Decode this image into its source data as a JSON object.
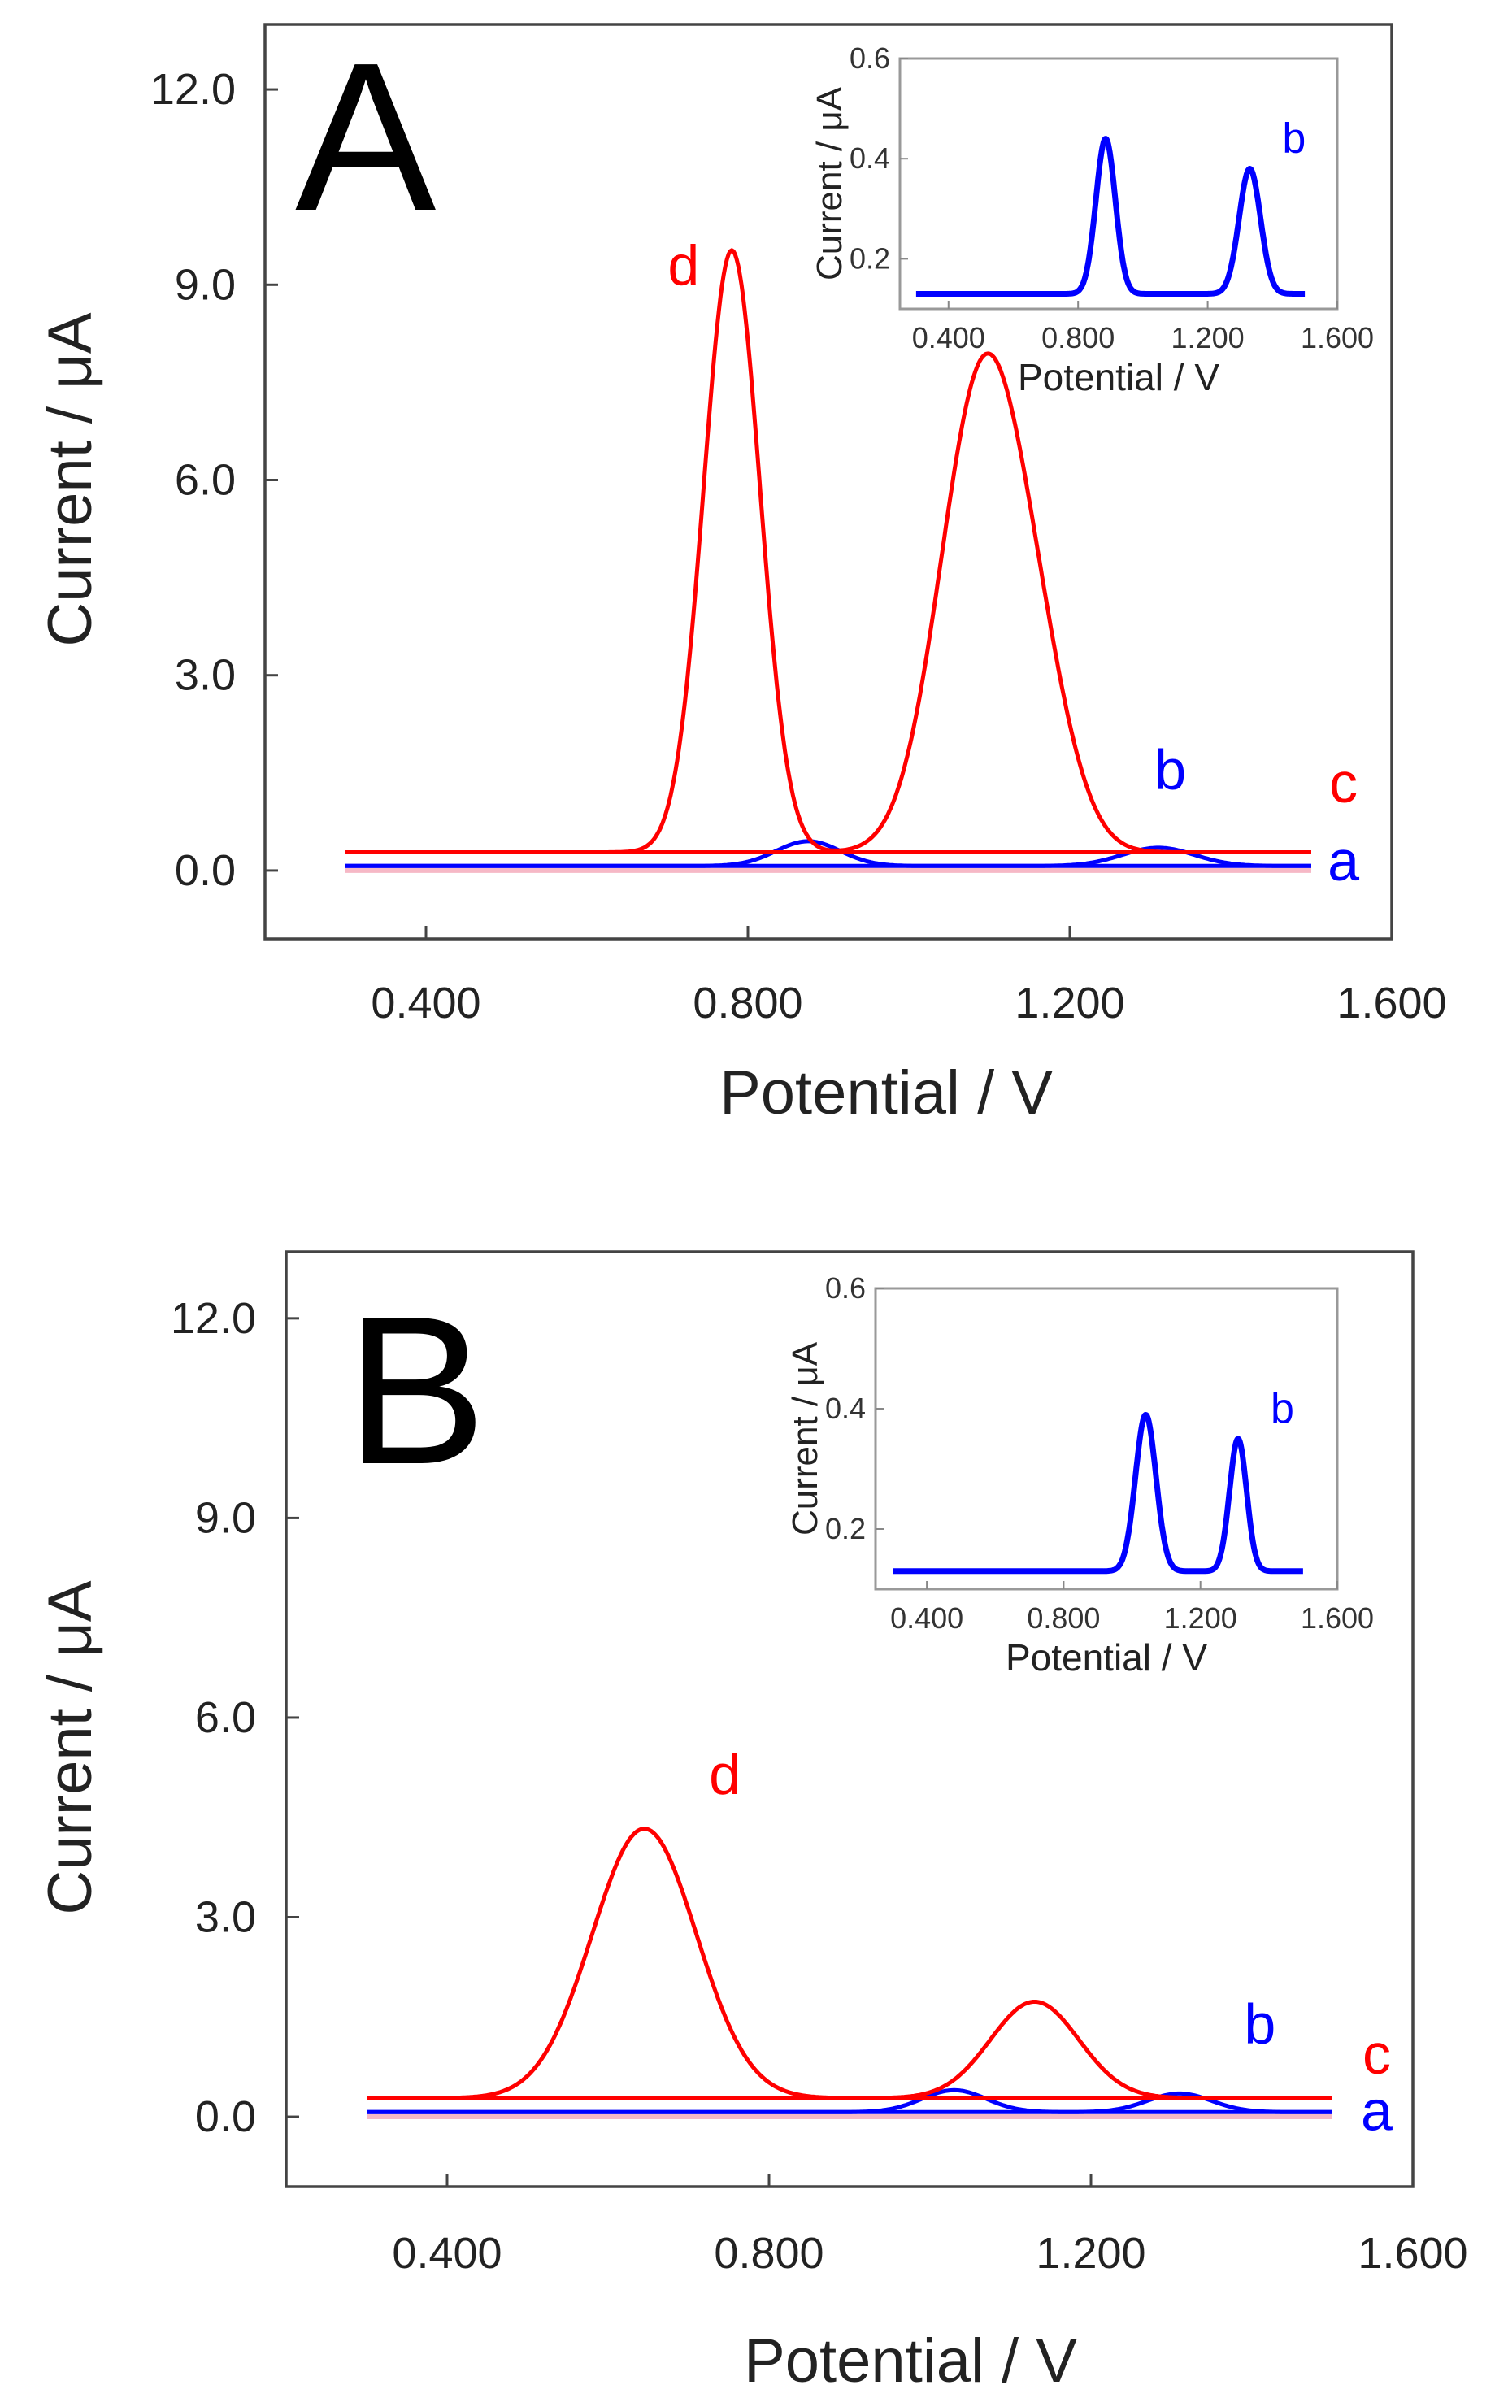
{
  "chart_data": [
    {
      "panel": "A",
      "type": "line",
      "title": "A",
      "xlabel": "Potential / V",
      "ylabel": "Current / μA",
      "xlim": [
        0.2,
        1.6
      ],
      "ylim": [
        -1.05,
        13.0
      ],
      "xticks": [
        "0.400",
        "0.800",
        "1.200",
        "1.600"
      ],
      "yticks": [
        "0.0",
        "3.0",
        "6.0",
        "9.0",
        "12.0"
      ],
      "series": [
        {
          "name": "a",
          "color": "#0000ff",
          "baseline": 0.07,
          "peaks": []
        },
        {
          "name": "b",
          "color": "#0000ff",
          "baseline": 0.07,
          "peaks": [
            {
              "center": 0.875,
              "height": 0.38,
              "width": 0.04
            },
            {
              "center": 1.31,
              "height": 0.28,
              "width": 0.045
            }
          ]
        },
        {
          "name": "c",
          "color": "#ff0000",
          "baseline": 0.28,
          "peaks": []
        },
        {
          "name": "d",
          "color": "#ff0000",
          "baseline": 0.28,
          "peaks": [
            {
              "center": 0.78,
              "height": 9.25,
              "width": 0.035
            },
            {
              "center": 1.09,
              "height": 7.05,
              "width": 0.052
            },
            {
              "center": 1.16,
              "height": 1.8,
              "width": 0.045
            }
          ]
        }
      ],
      "labels": [
        {
          "text": "d",
          "color": "#ff0000",
          "x": 0.72,
          "y": 9.0
        },
        {
          "text": "b",
          "color": "#0000ff",
          "x": 1.325,
          "y": 1.25
        },
        {
          "text": "c",
          "color": "#ff0000",
          "x": 1.54,
          "y": 1.05
        },
        {
          "text": "a",
          "color": "#0000ff",
          "x": 1.54,
          "y": -0.15
        }
      ],
      "inset": {
        "xlabel": "Potential / V",
        "ylabel": "Current / μA",
        "xlim": [
          0.25,
          1.6
        ],
        "ylim": [
          0.1,
          0.6
        ],
        "xticks": [
          "0.400",
          "0.800",
          "1.200",
          "1.600"
        ],
        "yticks": [
          "0.2",
          "0.4",
          "0.6"
        ],
        "label": "b",
        "series": {
          "color": "#0000ff",
          "baseline": 0.13,
          "peaks": [
            {
              "center": 0.885,
              "height": 0.31,
              "width": 0.03
            },
            {
              "center": 1.33,
              "height": 0.25,
              "width": 0.033
            }
          ]
        }
      }
    },
    {
      "panel": "B",
      "type": "line",
      "title": "B",
      "xlabel": "Potential / V",
      "ylabel": "Current / μA",
      "xlim": [
        0.2,
        1.6
      ],
      "ylim": [
        -1.05,
        13.0
      ],
      "xticks": [
        "0.400",
        "0.800",
        "1.200",
        "1.600"
      ],
      "yticks": [
        "0.0",
        "3.0",
        "6.0",
        "9.0",
        "12.0"
      ],
      "series": [
        {
          "name": "a",
          "color": "#0000ff",
          "baseline": 0.07,
          "peaks": []
        },
        {
          "name": "b",
          "color": "#0000ff",
          "baseline": 0.07,
          "peaks": [
            {
              "center": 1.03,
              "height": 0.33,
              "width": 0.04
            },
            {
              "center": 1.31,
              "height": 0.28,
              "width": 0.04
            }
          ]
        },
        {
          "name": "c",
          "color": "#ff0000",
          "baseline": 0.28,
          "peaks": []
        },
        {
          "name": "d",
          "color": "#ff0000",
          "baseline": 0.28,
          "peaks": [
            {
              "center": 0.645,
              "height": 4.05,
              "width": 0.065
            },
            {
              "center": 1.13,
              "height": 1.45,
              "width": 0.055
            }
          ]
        }
      ],
      "labels": [
        {
          "text": "d",
          "color": "#ff0000",
          "x": 0.745,
          "y": 4.85
        },
        {
          "text": "b",
          "color": "#0000ff",
          "x": 1.41,
          "y": 1.1
        },
        {
          "text": "c",
          "color": "#ff0000",
          "x": 1.555,
          "y": 0.65
        },
        {
          "text": "a",
          "color": "#0000ff",
          "x": 1.555,
          "y": -0.2
        }
      ],
      "inset": {
        "xlabel": "Potential / V",
        "ylabel": "Current / μA",
        "xlim": [
          0.25,
          1.6
        ],
        "ylim": [
          0.1,
          0.6
        ],
        "xticks": [
          "0.400",
          "0.800",
          "1.200",
          "1.600"
        ],
        "yticks": [
          "0.2",
          "0.4",
          "0.6"
        ],
        "label": "b",
        "series": {
          "color": "#0000ff",
          "baseline": 0.13,
          "peaks": [
            {
              "center": 1.04,
              "height": 0.26,
              "width": 0.03
            },
            {
              "center": 1.31,
              "height": 0.22,
              "width": 0.025
            }
          ]
        }
      }
    }
  ]
}
